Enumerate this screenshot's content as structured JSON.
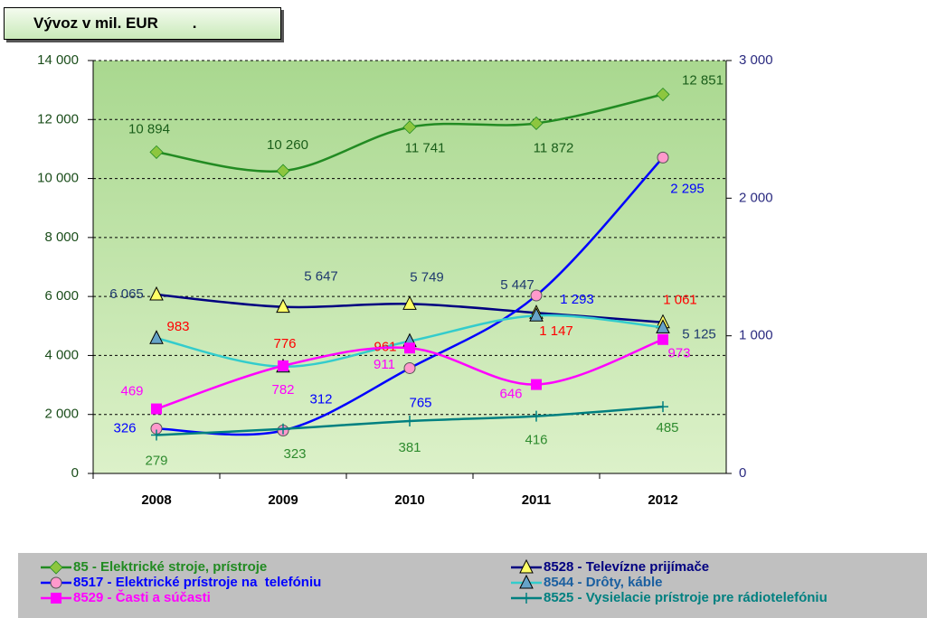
{
  "chart_data": {
    "type": "line",
    "title": "Vývoz v mil. EUR        .",
    "categories": [
      "2008",
      "2009",
      "2010",
      "2011",
      "2012"
    ],
    "ylim": [
      0,
      14000
    ],
    "yticks": [
      0,
      {
        "value": 2000,
        "label": "2 000"
      },
      {
        "value": 4000,
        "label": "4 000"
      },
      {
        "value": 6000,
        "label": "6 000"
      },
      {
        "value": 8000,
        "label": "8 000"
      },
      {
        "value": 10000,
        "label": "10 000"
      },
      {
        "value": 12000,
        "label": "12 000"
      },
      {
        "value": 14000,
        "label": "14 000"
      }
    ],
    "y2lim": [
      0,
      3000
    ],
    "y2ticks": [
      0,
      {
        "value": 1000,
        "label": "1 000"
      },
      {
        "value": 2000,
        "label": "2 000"
      },
      {
        "value": 3000,
        "label": "3 000"
      }
    ],
    "grid": true,
    "legend": "bottom",
    "series": [
      {
        "name": "85 - Elektrické stroje, prístroje",
        "color": "#228b22",
        "marker": "diamond",
        "marker_color": "#8dc63f",
        "label_color": "#1a5e1a",
        "values": [
          10894,
          10260,
          11741,
          11872,
          12851
        ],
        "value_labels": [
          "10 894",
          "10 260",
          "11 741",
          "11 872",
          "12 851"
        ]
      },
      {
        "name": "8528 - Televízne prijímače",
        "color": "#000080",
        "marker": "triangle",
        "marker_color": "#ffff66",
        "label_color": "#1f3a6e",
        "values": [
          6065,
          5647,
          5749,
          5447,
          5125
        ],
        "value_labels": [
          "6 065",
          "5 647",
          "5 749",
          "5 447",
          "5 125"
        ]
      },
      {
        "name": "8517 - Elektrické prístroje na  telefóniu",
        "color": "#0000ff",
        "marker": "circle",
        "marker_color": "#ff99cc",
        "label_color": "#0000ff",
        "axis": "y2",
        "values": [
          326,
          312,
          765,
          1293,
          2295
        ],
        "value_labels": [
          "326",
          "312",
          "765",
          "1 293",
          "2 295"
        ]
      },
      {
        "name": "8544 - Drôty, káble",
        "color": "#33cccc",
        "marker": "triangle",
        "marker_color": "#66a3c8",
        "label_color": "#ff0000",
        "axis": "y2",
        "values": [
          983,
          776,
          961,
          1147,
          1061
        ],
        "value_labels": [
          "983",
          "776",
          "961",
          "1 147",
          "1 061"
        ]
      },
      {
        "name": "8529 - Časti a súčasti",
        "color": "#ff00ff",
        "marker": "square",
        "marker_color": "#ff00ff",
        "label_color": "#ff00ff",
        "axis": "y2",
        "values": [
          469,
          782,
          911,
          646,
          973
        ],
        "value_labels": [
          "469",
          "782",
          "911",
          "646",
          "973"
        ]
      },
      {
        "name": "8525 - Vysielacie prístroje pre rádiotelefóniu",
        "color": "#008080",
        "marker": "plus",
        "marker_color": "#008080",
        "label_color": "#2e8b2e",
        "axis": "y2",
        "values": [
          279,
          323,
          381,
          416,
          485
        ],
        "value_labels": [
          "279",
          "323",
          "381",
          "416",
          "485"
        ]
      }
    ]
  }
}
